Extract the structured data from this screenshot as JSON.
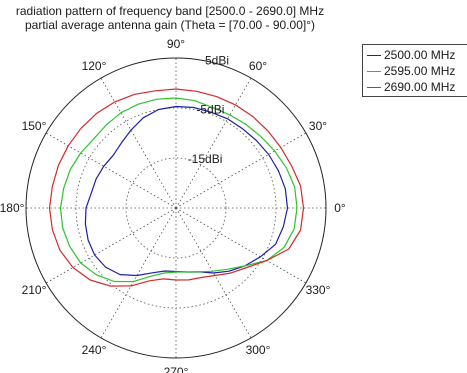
{
  "title": {
    "line1": "radiation pattern of frequency band [2500.0 - 2690.0] MHz",
    "line2": "partial average antenna gain (Theta = [70.00 - 90.00]°)"
  },
  "chart_data": {
    "type": "polar-line",
    "angle_unit": "deg",
    "angle_ticks": [
      0,
      30,
      60,
      90,
      120,
      150,
      180,
      210,
      240,
      270,
      300,
      330
    ],
    "angle_tick_labels": [
      "0°",
      "30°",
      "60°",
      "90°",
      "120°",
      "150°",
      "180°",
      "210°",
      "240°",
      "270°",
      "300°",
      "330°"
    ],
    "radial_range": [
      -25,
      5
    ],
    "radial_ticks": [
      -15,
      -5,
      5
    ],
    "radial_tick_labels": [
      "-15dBi",
      "-5dBi",
      "5dBi"
    ],
    "radial_label_angle_deg": 80,
    "grid": true,
    "legend_position": "top-right",
    "series": [
      {
        "name": "2500.00 MHz",
        "color": "#1f1fa6",
        "angles": [
          0,
          10,
          20,
          30,
          40,
          50,
          60,
          70,
          80,
          90,
          100,
          110,
          120,
          130,
          140,
          150,
          160,
          170,
          180,
          190,
          200,
          210,
          220,
          230,
          240,
          250,
          260,
          270,
          280,
          290,
          300,
          310,
          320,
          330,
          340,
          350
        ],
        "values": [
          -2.7,
          -2.8,
          -3.2,
          -3.6,
          -4.0,
          -4.3,
          -4.4,
          -4.6,
          -4.6,
          -4.7,
          -5.0,
          -5.8,
          -7.0,
          -8.0,
          -8.6,
          -8.3,
          -8.0,
          -7.8,
          -7.0,
          -6.6,
          -6.3,
          -6.2,
          -6.6,
          -7.6,
          -9.4,
          -11.2,
          -12.2,
          -12.3,
          -12.0,
          -11.4,
          -10.0,
          -8.5,
          -7.0,
          -5.5,
          -3.8,
          -3.2
        ]
      },
      {
        "name": "2595.00 MHz",
        "color": "#2fc12f",
        "angles": [
          0,
          10,
          20,
          30,
          40,
          50,
          60,
          70,
          80,
          90,
          100,
          110,
          120,
          130,
          140,
          150,
          160,
          170,
          180,
          190,
          200,
          210,
          220,
          230,
          240,
          250,
          260,
          270,
          280,
          290,
          300,
          310,
          320,
          330,
          340,
          350
        ],
        "values": [
          -0.8,
          -0.9,
          -1.5,
          -2.2,
          -2.8,
          -3.2,
          -3.5,
          -3.6,
          -3.2,
          -3.0,
          -2.9,
          -2.9,
          -3.0,
          -3.3,
          -3.5,
          -3.0,
          -2.5,
          -2.2,
          -1.9,
          -2.0,
          -2.4,
          -3.0,
          -4.2,
          -5.8,
          -8.0,
          -10.5,
          -11.8,
          -12.2,
          -12.0,
          -11.4,
          -10.4,
          -9.0,
          -7.0,
          -4.0,
          -2.0,
          -1.0
        ]
      },
      {
        "name": "2690.00 MHz",
        "color": "#d42a2a",
        "angles": [
          0,
          10,
          20,
          30,
          40,
          50,
          60,
          70,
          80,
          90,
          100,
          110,
          120,
          130,
          140,
          150,
          160,
          170,
          180,
          190,
          200,
          210,
          220,
          230,
          240,
          250,
          260,
          270,
          280,
          290,
          300,
          310,
          320,
          330,
          340,
          350
        ],
        "values": [
          0.5,
          0.3,
          -0.4,
          -0.8,
          -1.0,
          -1.1,
          -1.2,
          -1.3,
          -1.3,
          -1.2,
          -1.2,
          -0.8,
          -0.5,
          -0.3,
          -0.2,
          -0.1,
          0.0,
          0.1,
          0.3,
          0.1,
          -0.3,
          -1.2,
          -2.6,
          -4.6,
          -7.0,
          -9.5,
          -10.6,
          -10.6,
          -10.4,
          -10.2,
          -9.4,
          -8.0,
          -6.5,
          -4.0,
          -1.0,
          0.3
        ]
      }
    ]
  }
}
